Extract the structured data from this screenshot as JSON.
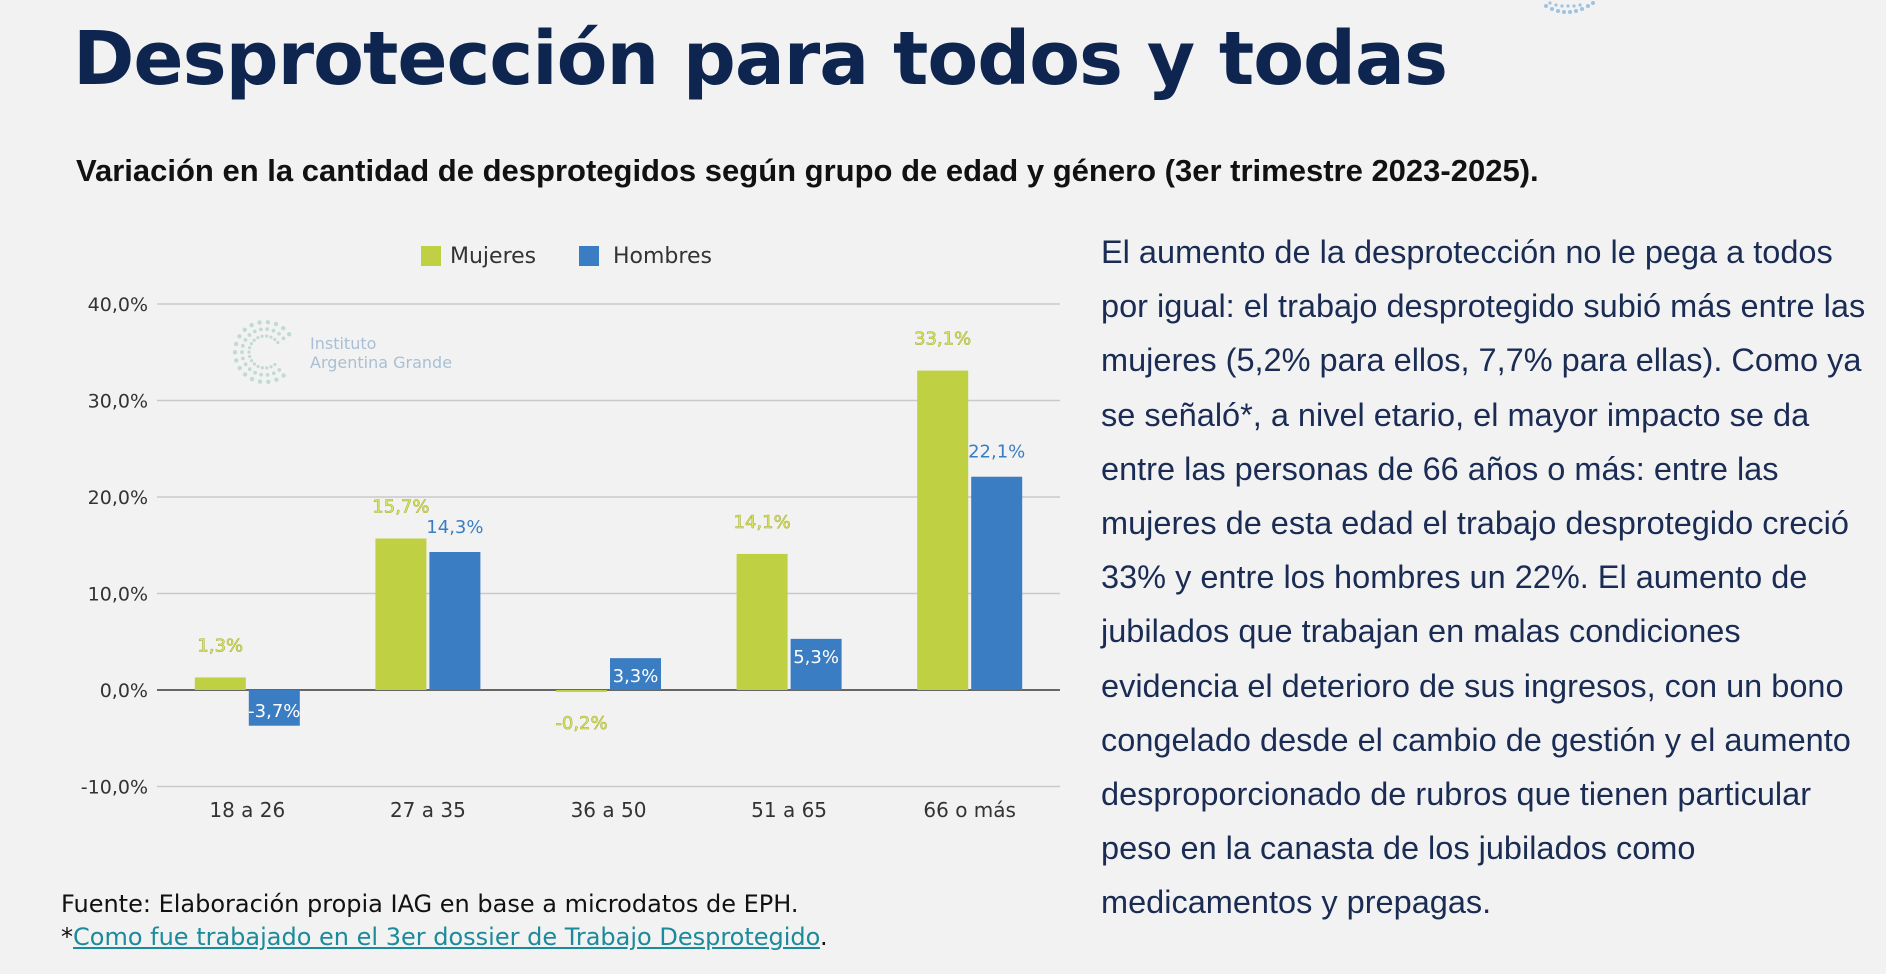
{
  "title": "Desprotección para todos y todas",
  "subtitle": "Variación en la cantidad de desprotegidos según grupo de edad y género (3er trimestre 2023-2025).",
  "body_text": "El aumento de la desprotección no le pega a todos por igual: el trabajo desprotegido subió más entre las mujeres (5,2% para ellos, 7,7% para ellas). Como ya se señaló*, a nivel etario, el mayor impacto se da entre las personas de 66 años o más: entre las mujeres de esta edad el trabajo desprotegido creció 33% y entre los hombres un 22%. El aumento de jubilados que trabajan en malas condiciones evidencia el deterioro de sus ingresos, con un bono congelado desde el cambio de gestión y el aumento desproporcionado de rubros que tienen particular peso en la canasta de los jubilados como medicamentos y prepagas.",
  "source": {
    "line1": "Fuente: Elaboración propia IAG en base a microdatos de EPH.",
    "asterisk": "*",
    "link_text": "Como fue trabajado en el 3er dossier de Trabajo Desprotegido",
    "period": "."
  },
  "watermark": {
    "line1": "Instituto",
    "line2": "Argentina Grande"
  },
  "colors": {
    "mujeres": "#bfd043",
    "hombres": "#3a7dc2",
    "mujeres_label": "#dde86a",
    "hombres_label": "#3a7dc2",
    "title": "#0e2550"
  },
  "chart_data": {
    "type": "bar",
    "categories": [
      "18 a 26",
      "27 a 35",
      "36 a 50",
      "51 a 65",
      "66 o más"
    ],
    "series": [
      {
        "name": "Mujeres",
        "values": [
          1.3,
          15.7,
          -0.2,
          14.1,
          33.1
        ],
        "labels": [
          "1,3%",
          "15,7%",
          "-0,2%",
          "14,1%",
          "33,1%"
        ]
      },
      {
        "name": "Hombres",
        "values": [
          -3.7,
          14.3,
          3.3,
          5.3,
          22.1
        ],
        "labels": [
          "-3,7%",
          "14,3%",
          "3,3%",
          "5,3%",
          "22,1%"
        ]
      }
    ],
    "yticks": [
      -10,
      0,
      10,
      20,
      30,
      40
    ],
    "ytick_labels": [
      "-10,0%",
      "0,0%",
      "10,0%",
      "20,0%",
      "30,0%",
      "40,0%"
    ],
    "ylim": [
      -10,
      40
    ],
    "legend_position": "top-center",
    "grid": true
  }
}
